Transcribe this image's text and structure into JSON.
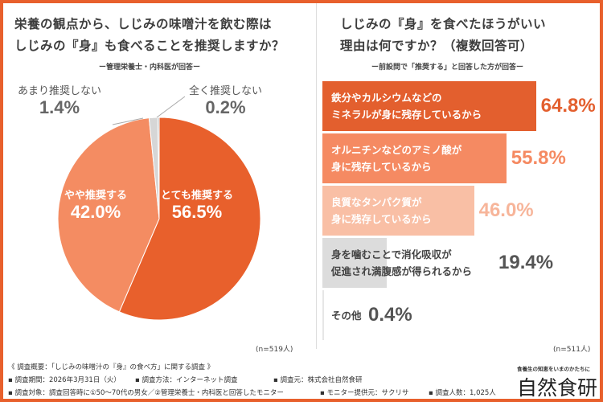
{
  "chart_data": [
    {
      "type": "pie",
      "title_lines": [
        "栄養の観点から、しじみの味噌汁を飲む際は",
        "しじみの『身』も食べることを推奨しますか？"
      ],
      "subtitle": "ー管理栄養士・内科医が回答ー",
      "slices": [
        {
          "label": "とても推奨する",
          "value": 56.5,
          "display": "56.5%",
          "color": "#e8602c"
        },
        {
          "label": "やや推奨する",
          "value": 42.0,
          "display": "42.0%",
          "color": "#f48c62"
        },
        {
          "label": "あまり推奨しない",
          "value": 1.4,
          "display": "1.4%",
          "color": "#d6d6d6"
        },
        {
          "label": "全く推奨しない",
          "value": 0.2,
          "display": "0.2%",
          "color": "#999999"
        }
      ],
      "n": "(n=519人)"
    },
    {
      "type": "bar",
      "orientation": "horizontal",
      "title_lines": [
        "しじみの『身』を食べたほうがいい",
        "理由は何ですか？（複数回答可）"
      ],
      "subtitle": "ー前設問で「推奨する」と回答した方が回答ー",
      "xlim": [
        0,
        100
      ],
      "bars": [
        {
          "label_lines": [
            "鉄分やカルシウムなどの",
            "ミネラルが身に残存しているから"
          ],
          "value": 64.8,
          "display": "64.8%",
          "color": "#e35f2e",
          "text_color": "#e35f2e",
          "label_color": "#ffffff"
        },
        {
          "label_lines": [
            "オルニチンなどのアミノ酸が",
            "身に残存しているから"
          ],
          "value": 55.8,
          "display": "55.8%",
          "color": "#f58a62",
          "text_color": "#f58a62",
          "label_color": "#ffffff"
        },
        {
          "label_lines": [
            "良質なタンパク質が",
            "身に残存しているから"
          ],
          "value": 46.0,
          "display": "46.0%",
          "color": "#f9bfa5",
          "text_color": "#f7b59a",
          "label_color": "#ffffff"
        },
        {
          "label_lines": [
            "身を噛むことで消化吸収が",
            "促進され満腹感が得られるから"
          ],
          "value": 19.4,
          "display": "19.4%",
          "color": "#dcdcdc",
          "text_color": "#555555",
          "label_color": "#444444"
        },
        {
          "label_lines": [
            "その他"
          ],
          "value": 0.4,
          "display": "0.4%",
          "color": "#e6e6e6",
          "text_color": "#555555",
          "label_color": "#444444"
        }
      ],
      "n": "(n=511人)"
    }
  ],
  "footer": {
    "overview": "《 調査概要：「しじみの味噌汁の『身』の食べ方」に関する調査 》",
    "period": "▪ 調査期間：2026年3月31日（火）",
    "method": "▪ 調査方法：インターネット調査",
    "source": "▪ 調査元：株式会社自然食研",
    "target": "▪ 調査対象：調査回答時に①50～70代の男女／②管理栄養士・内科医と回答したモニター",
    "provider": "▪ モニター提供元：サクリサ",
    "count": "▪ 調査人数：1,025人"
  },
  "logo": {
    "tagline": "食養生の知恵をいまのかたちに",
    "name": "自然食研"
  }
}
